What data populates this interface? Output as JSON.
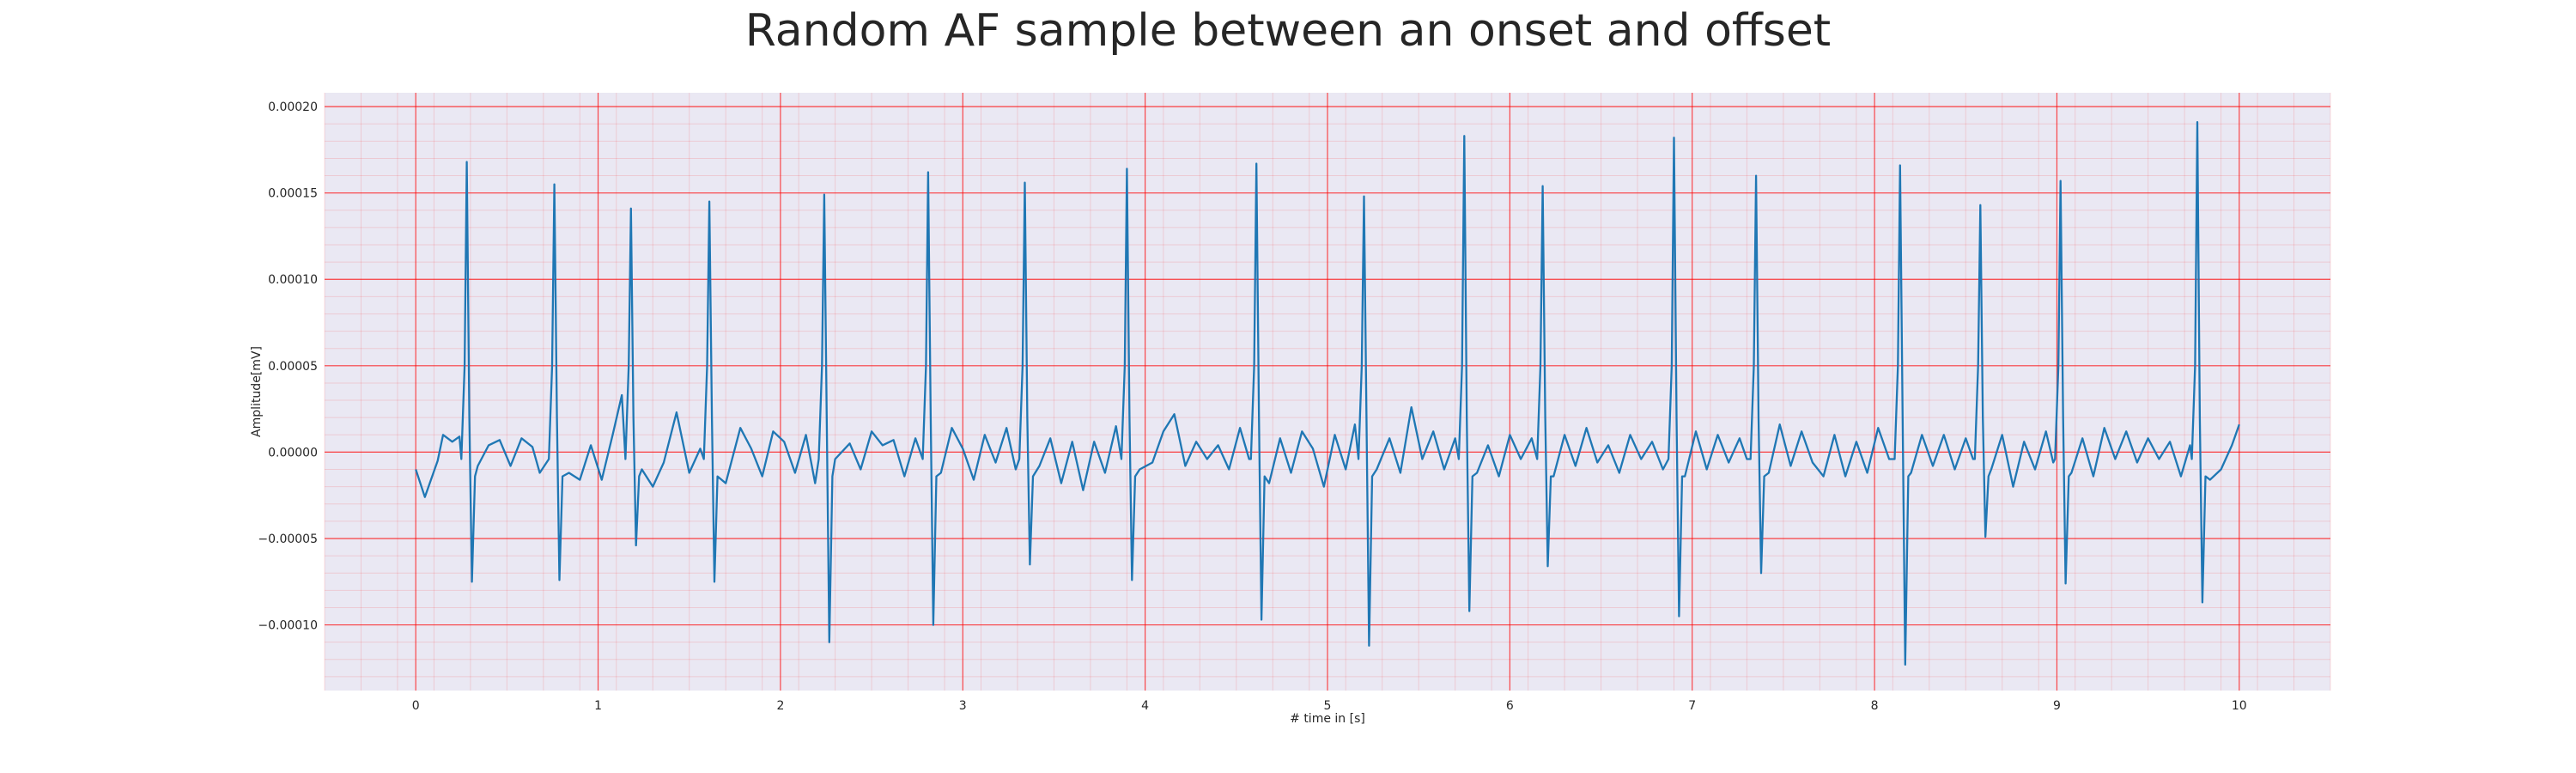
{
  "chart_data": {
    "type": "line",
    "title": "Random AF sample between an onset and offset",
    "xlabel": "# time in [s]",
    "ylabel": "Amplitude[mV]",
    "xlim": [
      -0.5,
      10.5
    ],
    "ylim": [
      -0.000138,
      0.000208
    ],
    "xticks": [
      0,
      1,
      2,
      3,
      4,
      5,
      6,
      7,
      8,
      9,
      10
    ],
    "xtick_labels": [
      "0",
      "1",
      "2",
      "3",
      "4",
      "5",
      "6",
      "7",
      "8",
      "9",
      "10"
    ],
    "yticks": [
      -0.0001,
      -5e-05,
      0,
      5e-05,
      0.0001,
      0.00015,
      0.0002
    ],
    "ytick_labels": [
      "−0.00010",
      "−0.00005",
      "0.00000",
      "0.00005",
      "0.00010",
      "0.00015",
      "0.00020"
    ],
    "grid": true,
    "grid_color": "#ff0000",
    "background": "#eae8f3",
    "line_color": "#1f77b4",
    "series": [
      {
        "peaks": [
          {
            "t": 0.28,
            "max": 0.000168,
            "min": -7.5e-05
          },
          {
            "t": 0.76,
            "max": 0.000155,
            "min": -7.4e-05
          },
          {
            "t": 1.18,
            "max": 0.000141,
            "min": -5.4e-05
          },
          {
            "t": 1.61,
            "max": 0.000145,
            "min": -7.5e-05
          },
          {
            "t": 2.24,
            "max": 0.000149,
            "min": -0.00011
          },
          {
            "t": 2.81,
            "max": 0.000162,
            "min": -0.0001
          },
          {
            "t": 3.34,
            "max": 0.000156,
            "min": -6.5e-05
          },
          {
            "t": 3.9,
            "max": 0.000164,
            "min": -7.4e-05
          },
          {
            "t": 4.61,
            "max": 0.000167,
            "min": -9.7e-05
          },
          {
            "t": 5.2,
            "max": 0.000148,
            "min": -0.000112
          },
          {
            "t": 5.75,
            "max": 0.000183,
            "min": -9.2e-05
          },
          {
            "t": 6.18,
            "max": 0.000154,
            "min": -6.6e-05
          },
          {
            "t": 6.9,
            "max": 0.000182,
            "min": -9.5e-05
          },
          {
            "t": 7.35,
            "max": 0.00016,
            "min": -7e-05
          },
          {
            "t": 8.14,
            "max": 0.000166,
            "min": -0.000123
          },
          {
            "t": 8.58,
            "max": 0.000143,
            "min": -4.9e-05
          },
          {
            "t": 9.02,
            "max": 0.000157,
            "min": -7.6e-05
          },
          {
            "t": 9.77,
            "max": 0.000191,
            "min": -8.7e-05
          }
        ],
        "baseline": [
          {
            "t": 0.0,
            "y": -1e-05
          },
          {
            "t": 0.05,
            "y": -2.6e-05
          },
          {
            "t": 0.12,
            "y": -5e-06
          },
          {
            "t": 0.15,
            "y": 1e-05
          },
          {
            "t": 0.2,
            "y": 6e-06
          },
          {
            "t": 0.24,
            "y": 9e-06
          },
          {
            "t": 0.34,
            "y": -8e-06
          },
          {
            "t": 0.4,
            "y": 4e-06
          },
          {
            "t": 0.46,
            "y": 7e-06
          },
          {
            "t": 0.52,
            "y": -8e-06
          },
          {
            "t": 0.58,
            "y": 8e-06
          },
          {
            "t": 0.64,
            "y": 3e-06
          },
          {
            "t": 0.68,
            "y": -1.2e-05
          },
          {
            "t": 0.84,
            "y": -1.2e-05
          },
          {
            "t": 0.9,
            "y": -1.6e-05
          },
          {
            "t": 0.96,
            "y": 4e-06
          },
          {
            "t": 1.02,
            "y": -1.6e-05
          },
          {
            "t": 1.08,
            "y": 1e-05
          },
          {
            "t": 1.13,
            "y": 3.3e-05
          },
          {
            "t": 1.24,
            "y": -1e-05
          },
          {
            "t": 1.3,
            "y": -2e-05
          },
          {
            "t": 1.36,
            "y": -6e-06
          },
          {
            "t": 1.43,
            "y": 2.3e-05
          },
          {
            "t": 1.5,
            "y": -1.2e-05
          },
          {
            "t": 1.56,
            "y": 2e-06
          },
          {
            "t": 1.7,
            "y": -1.8e-05
          },
          {
            "t": 1.78,
            "y": 1.4e-05
          },
          {
            "t": 1.84,
            "y": 2e-06
          },
          {
            "t": 1.9,
            "y": -1.4e-05
          },
          {
            "t": 1.96,
            "y": 1.2e-05
          },
          {
            "t": 2.02,
            "y": 6e-06
          },
          {
            "t": 2.08,
            "y": -1.2e-05
          },
          {
            "t": 2.14,
            "y": 1e-05
          },
          {
            "t": 2.19,
            "y": -1.8e-05
          },
          {
            "t": 2.3,
            "y": -4e-06
          },
          {
            "t": 2.38,
            "y": 5e-06
          },
          {
            "t": 2.44,
            "y": -1e-05
          },
          {
            "t": 2.5,
            "y": 1.2e-05
          },
          {
            "t": 2.56,
            "y": 4e-06
          },
          {
            "t": 2.62,
            "y": 7e-06
          },
          {
            "t": 2.68,
            "y": -1.4e-05
          },
          {
            "t": 2.74,
            "y": 8e-06
          },
          {
            "t": 2.88,
            "y": -1.2e-05
          },
          {
            "t": 2.94,
            "y": 1.4e-05
          },
          {
            "t": 3.0,
            "y": 2e-06
          },
          {
            "t": 3.06,
            "y": -1.6e-05
          },
          {
            "t": 3.12,
            "y": 1e-05
          },
          {
            "t": 3.18,
            "y": -6e-06
          },
          {
            "t": 3.24,
            "y": 1.4e-05
          },
          {
            "t": 3.29,
            "y": -1e-05
          },
          {
            "t": 3.42,
            "y": -8e-06
          },
          {
            "t": 3.48,
            "y": 8e-06
          },
          {
            "t": 3.54,
            "y": -1.8e-05
          },
          {
            "t": 3.6,
            "y": 6e-06
          },
          {
            "t": 3.66,
            "y": -2.2e-05
          },
          {
            "t": 3.72,
            "y": 6e-06
          },
          {
            "t": 3.78,
            "y": -1.2e-05
          },
          {
            "t": 3.84,
            "y": 1.5e-05
          },
          {
            "t": 3.97,
            "y": -1e-05
          },
          {
            "t": 4.04,
            "y": -6e-06
          },
          {
            "t": 4.1,
            "y": 1.2e-05
          },
          {
            "t": 4.16,
            "y": 2.2e-05
          },
          {
            "t": 4.22,
            "y": -8e-06
          },
          {
            "t": 4.28,
            "y": 6e-06
          },
          {
            "t": 4.34,
            "y": -4e-06
          },
          {
            "t": 4.4,
            "y": 4e-06
          },
          {
            "t": 4.46,
            "y": -1e-05
          },
          {
            "t": 4.52,
            "y": 1.4e-05
          },
          {
            "t": 4.57,
            "y": -4e-06
          },
          {
            "t": 4.68,
            "y": -1.8e-05
          },
          {
            "t": 4.74,
            "y": 8e-06
          },
          {
            "t": 4.8,
            "y": -1.2e-05
          },
          {
            "t": 4.86,
            "y": 1.2e-05
          },
          {
            "t": 4.92,
            "y": 2e-06
          },
          {
            "t": 4.98,
            "y": -2e-05
          },
          {
            "t": 5.04,
            "y": 1e-05
          },
          {
            "t": 5.1,
            "y": -1e-05
          },
          {
            "t": 5.15,
            "y": 1.6e-05
          },
          {
            "t": 5.27,
            "y": -1e-05
          },
          {
            "t": 5.34,
            "y": 8e-06
          },
          {
            "t": 5.4,
            "y": -1.2e-05
          },
          {
            "t": 5.46,
            "y": 2.6e-05
          },
          {
            "t": 5.52,
            "y": -4e-06
          },
          {
            "t": 5.58,
            "y": 1.2e-05
          },
          {
            "t": 5.64,
            "y": -1e-05
          },
          {
            "t": 5.7,
            "y": 8e-06
          },
          {
            "t": 5.82,
            "y": -1.2e-05
          },
          {
            "t": 5.88,
            "y": 4e-06
          },
          {
            "t": 5.94,
            "y": -1.4e-05
          },
          {
            "t": 6.0,
            "y": 1e-05
          },
          {
            "t": 6.06,
            "y": -4e-06
          },
          {
            "t": 6.12,
            "y": 8e-06
          },
          {
            "t": 6.24,
            "y": -1.4e-05
          },
          {
            "t": 6.3,
            "y": 1e-05
          },
          {
            "t": 6.36,
            "y": -8e-06
          },
          {
            "t": 6.42,
            "y": 1.4e-05
          },
          {
            "t": 6.48,
            "y": -6e-06
          },
          {
            "t": 6.54,
            "y": 4e-06
          },
          {
            "t": 6.6,
            "y": -1.2e-05
          },
          {
            "t": 6.66,
            "y": 1e-05
          },
          {
            "t": 6.72,
            "y": -4e-06
          },
          {
            "t": 6.78,
            "y": 6e-06
          },
          {
            "t": 6.84,
            "y": -1e-05
          },
          {
            "t": 6.96,
            "y": -1.4e-05
          },
          {
            "t": 7.02,
            "y": 1.2e-05
          },
          {
            "t": 7.08,
            "y": -1e-05
          },
          {
            "t": 7.14,
            "y": 1e-05
          },
          {
            "t": 7.2,
            "y": -6e-06
          },
          {
            "t": 7.26,
            "y": 8e-06
          },
          {
            "t": 7.3,
            "y": -4e-06
          },
          {
            "t": 7.42,
            "y": -1.2e-05
          },
          {
            "t": 7.48,
            "y": 1.6e-05
          },
          {
            "t": 7.54,
            "y": -8e-06
          },
          {
            "t": 7.6,
            "y": 1.2e-05
          },
          {
            "t": 7.66,
            "y": -6e-06
          },
          {
            "t": 7.72,
            "y": -1.4e-05
          },
          {
            "t": 7.78,
            "y": 1e-05
          },
          {
            "t": 7.84,
            "y": -1.4e-05
          },
          {
            "t": 7.9,
            "y": 6e-06
          },
          {
            "t": 7.96,
            "y": -1.2e-05
          },
          {
            "t": 8.02,
            "y": 1.4e-05
          },
          {
            "t": 8.08,
            "y": -4e-06
          },
          {
            "t": 8.2,
            "y": -1.2e-05
          },
          {
            "t": 8.26,
            "y": 1e-05
          },
          {
            "t": 8.32,
            "y": -8e-06
          },
          {
            "t": 8.38,
            "y": 1e-05
          },
          {
            "t": 8.44,
            "y": -1e-05
          },
          {
            "t": 8.5,
            "y": 8e-06
          },
          {
            "t": 8.54,
            "y": -4e-06
          },
          {
            "t": 8.64,
            "y": -1e-05
          },
          {
            "t": 8.7,
            "y": 1e-05
          },
          {
            "t": 8.76,
            "y": -2e-05
          },
          {
            "t": 8.82,
            "y": 6e-06
          },
          {
            "t": 8.88,
            "y": -1e-05
          },
          {
            "t": 8.94,
            "y": 1.2e-05
          },
          {
            "t": 8.98,
            "y": -6e-06
          },
          {
            "t": 9.08,
            "y": -1.2e-05
          },
          {
            "t": 9.14,
            "y": 8e-06
          },
          {
            "t": 9.2,
            "y": -1.4e-05
          },
          {
            "t": 9.26,
            "y": 1.4e-05
          },
          {
            "t": 9.32,
            "y": -4e-06
          },
          {
            "t": 9.38,
            "y": 1.2e-05
          },
          {
            "t": 9.44,
            "y": -6e-06
          },
          {
            "t": 9.5,
            "y": 8e-06
          },
          {
            "t": 9.56,
            "y": -4e-06
          },
          {
            "t": 9.62,
            "y": 6e-06
          },
          {
            "t": 9.68,
            "y": -1.4e-05
          },
          {
            "t": 9.73,
            "y": 4e-06
          },
          {
            "t": 9.84,
            "y": -1.6e-05
          },
          {
            "t": 9.9,
            "y": -1e-05
          },
          {
            "t": 9.96,
            "y": 4e-06
          },
          {
            "t": 10.0,
            "y": 1.6e-05
          }
        ]
      }
    ]
  }
}
